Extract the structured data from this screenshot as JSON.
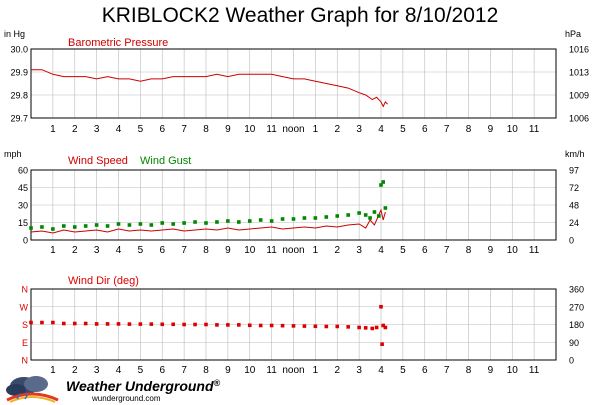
{
  "title": "KRIBLOCK2 Weather Graph for 8/10/2012",
  "brand": {
    "name": "Weather Underground",
    "trademark": "®",
    "url": "wunderground.com",
    "logo_icon": "cloud-rain-logo-icon"
  },
  "colors": {
    "pressure": "#cc0000",
    "wind_speed": "#cc0000",
    "wind_gust": "#008800",
    "wind_dir": "#dd0000",
    "frame": "#000000",
    "grid": "#bbbbbb"
  },
  "chart_data": [
    {
      "type": "line",
      "title": "Barometric Pressure",
      "ylabel_left": "in Hg",
      "ylabel_right": "hPa",
      "ylim": [
        29.7,
        30.0
      ],
      "yticks_left": [
        "30.0",
        "29.9",
        "29.8",
        "29.7"
      ],
      "yticks_right": [
        "1016",
        "1013",
        "1009",
        "1006"
      ],
      "x_labels": [
        "1",
        "2",
        "3",
        "4",
        "5",
        "6",
        "7",
        "8",
        "9",
        "10",
        "11",
        "noon",
        "1",
        "2",
        "3",
        "4",
        "5",
        "6",
        "7",
        "8",
        "9",
        "10",
        "11"
      ],
      "xlim": [
        0,
        24
      ],
      "grid": true,
      "series": [
        {
          "name": "Barometric Pressure",
          "color": "#cc0000",
          "x": [
            0.0,
            0.5,
            1.0,
            1.5,
            2.0,
            2.5,
            3.0,
            3.5,
            4.0,
            4.5,
            5.0,
            5.5,
            6.0,
            6.5,
            7.0,
            7.5,
            8.0,
            8.5,
            9.0,
            9.5,
            10.0,
            10.5,
            11.0,
            11.5,
            12.0,
            12.5,
            13.0,
            13.5,
            14.0,
            14.5,
            15.0,
            15.3,
            15.6,
            15.8,
            16.0,
            16.1,
            16.2,
            16.3
          ],
          "y": [
            29.91,
            29.91,
            29.89,
            29.88,
            29.88,
            29.88,
            29.87,
            29.88,
            29.87,
            29.87,
            29.86,
            29.87,
            29.87,
            29.88,
            29.88,
            29.88,
            29.88,
            29.89,
            29.88,
            29.89,
            29.89,
            29.89,
            29.89,
            29.88,
            29.87,
            29.87,
            29.86,
            29.85,
            29.84,
            29.83,
            29.81,
            29.8,
            29.78,
            29.79,
            29.77,
            29.75,
            29.77,
            29.76
          ]
        }
      ]
    },
    {
      "type": "line",
      "title": "",
      "legend": [
        "Wind Speed",
        "Wind Gust"
      ],
      "ylabel_left": "mph",
      "ylabel_right": "km/h",
      "ylim": [
        0,
        70
      ],
      "yticks_left": [
        "60",
        "45",
        "30",
        "15",
        "0"
      ],
      "yticks_right": [
        "97",
        "72",
        "48",
        "24",
        "0"
      ],
      "x_labels": [
        "1",
        "2",
        "3",
        "4",
        "5",
        "6",
        "7",
        "8",
        "9",
        "10",
        "11",
        "noon",
        "1",
        "2",
        "3",
        "4",
        "5",
        "6",
        "7",
        "8",
        "9",
        "10",
        "11"
      ],
      "xlim": [
        0,
        24
      ],
      "grid": true,
      "series": [
        {
          "name": "Wind Speed",
          "color": "#cc0000",
          "x": [
            0,
            0.5,
            1,
            1.5,
            2,
            2.5,
            3,
            3.5,
            4,
            4.5,
            5,
            5.5,
            6,
            6.5,
            7,
            7.5,
            8,
            8.5,
            9,
            9.5,
            10,
            10.5,
            11,
            11.5,
            12,
            12.5,
            13,
            13.5,
            14,
            14.5,
            15,
            15.3,
            15.5,
            15.7,
            15.9,
            16,
            16.1,
            16.2
          ],
          "y": [
            8,
            9,
            7,
            10,
            8,
            9,
            10,
            8,
            11,
            9,
            10,
            9,
            10,
            11,
            9,
            10,
            11,
            10,
            12,
            10,
            11,
            12,
            13,
            11,
            12,
            13,
            12,
            14,
            13,
            15,
            16,
            12,
            20,
            15,
            25,
            30,
            20,
            28
          ]
        },
        {
          "name": "Wind Gust",
          "color": "#008800",
          "x": [
            0,
            0.5,
            1,
            1.5,
            2,
            2.5,
            3,
            3.5,
            4,
            4.5,
            5,
            5.5,
            6,
            6.5,
            7,
            7.5,
            8,
            8.5,
            9,
            9.5,
            10,
            10.5,
            11,
            11.5,
            12,
            12.5,
            13,
            13.5,
            14,
            14.5,
            15,
            15.3,
            15.5,
            15.7,
            15.9,
            16,
            16.1,
            16.2
          ],
          "y": [
            12,
            13,
            11,
            14,
            13,
            14,
            15,
            14,
            16,
            15,
            16,
            15,
            17,
            16,
            17,
            18,
            17,
            18,
            19,
            18,
            19,
            20,
            19,
            21,
            21,
            22,
            22,
            23,
            24,
            25,
            27,
            25,
            22,
            28,
            24,
            55,
            58,
            32
          ]
        }
      ]
    },
    {
      "type": "scatter",
      "title": "Wind Dir (deg)",
      "ylabel_right": "",
      "ylim": [
        0,
        360
      ],
      "yticks_left": [
        "N",
        "W",
        "S",
        "E",
        "N"
      ],
      "yticks_right": [
        "360",
        "270",
        "180",
        "90",
        "0"
      ],
      "x_labels": [
        "1",
        "2",
        "3",
        "4",
        "5",
        "6",
        "7",
        "8",
        "9",
        "10",
        "11",
        "noon",
        "1",
        "2",
        "3",
        "4",
        "5",
        "6",
        "7",
        "8",
        "9",
        "10",
        "11"
      ],
      "xlim": [
        0,
        24
      ],
      "grid": true,
      "series": [
        {
          "name": "Wind Dir (deg)",
          "color": "#dd0000",
          "x": [
            0,
            0.5,
            1,
            1.5,
            2,
            2.5,
            3,
            3.5,
            4,
            4.5,
            5,
            5.5,
            6,
            6.5,
            7,
            7.5,
            8,
            8.5,
            9,
            9.5,
            10,
            10.5,
            11,
            11.5,
            12,
            12.5,
            13,
            13.5,
            14,
            14.5,
            15,
            15.3,
            15.6,
            15.8,
            16,
            16.05,
            16.1,
            16.2
          ],
          "y": [
            190,
            190,
            190,
            185,
            185,
            185,
            183,
            183,
            183,
            182,
            182,
            182,
            181,
            181,
            180,
            180,
            180,
            178,
            178,
            178,
            176,
            175,
            175,
            174,
            173,
            172,
            171,
            170,
            170,
            168,
            165,
            163,
            160,
            165,
            270,
            80,
            175,
            165
          ]
        }
      ]
    }
  ]
}
